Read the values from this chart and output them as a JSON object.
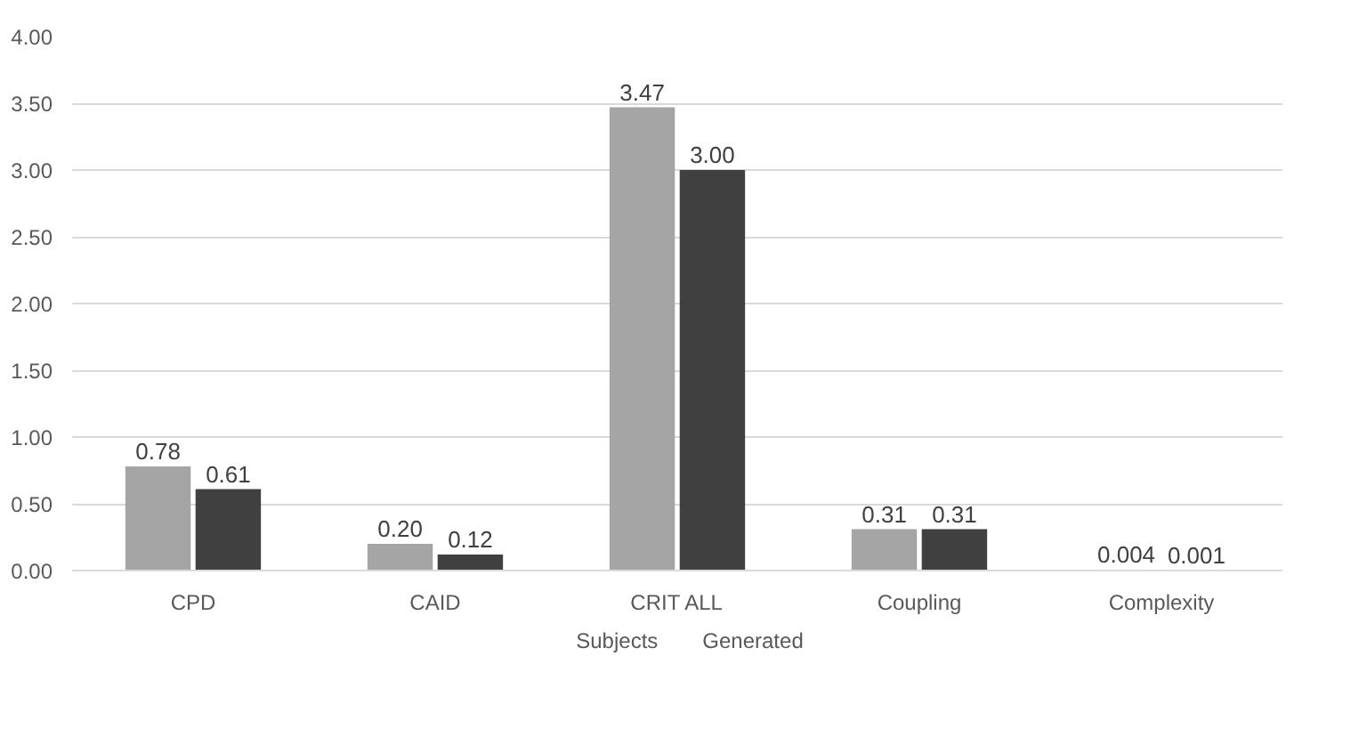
{
  "chart_data": {
    "type": "bar",
    "categories": [
      "CPD",
      "CAID",
      "CRIT ALL",
      "Coupling",
      "Complexity"
    ],
    "series": [
      {
        "name": "Subjects",
        "color": "#a5a5a5",
        "values": [
          0.78,
          0.2,
          3.47,
          0.31,
          0.004
        ],
        "value_labels": [
          "0.78",
          "0.20",
          "3.47",
          "0.31",
          "0.004"
        ]
      },
      {
        "name": "Generated",
        "color": "#404040",
        "values": [
          0.61,
          0.12,
          3.0,
          0.31,
          0.001
        ],
        "value_labels": [
          "0.61",
          "0.12",
          "3.00",
          "0.31",
          "0.001"
        ]
      }
    ],
    "ylim": [
      0,
      4
    ],
    "yticks": [
      {
        "value": 0,
        "label": "0.00"
      },
      {
        "value": 0.5,
        "label": "0.50"
      },
      {
        "value": 1,
        "label": "1.00"
      },
      {
        "value": 1.5,
        "label": "1.50"
      },
      {
        "value": 2,
        "label": "2.00"
      },
      {
        "value": 2.5,
        "label": "2.50"
      },
      {
        "value": 3,
        "label": "3.00"
      },
      {
        "value": 3.5,
        "label": "3.50"
      },
      {
        "value": 4,
        "label": "4.00"
      }
    ],
    "grid": "y",
    "legend": "bottom"
  }
}
